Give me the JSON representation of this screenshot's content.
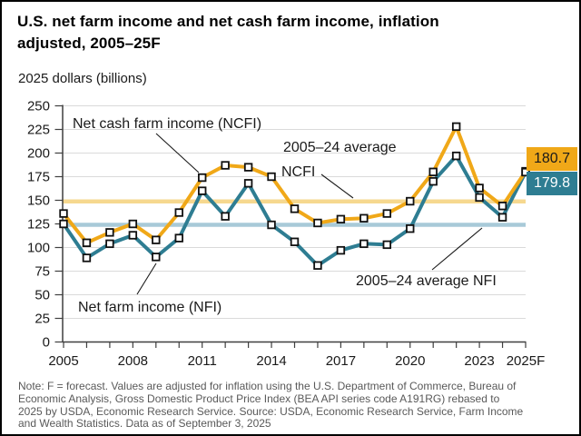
{
  "title_lines": [
    "U.S. net farm income and net cash farm income, inflation",
    "adjusted, 2005–25F"
  ],
  "subtitle": "2025 dollars (billions)",
  "annotations": {
    "ncfi_label": "Net cash farm income (NCFI)",
    "nfi_label": "Net farm income (NFI)",
    "avg_ncfi_line1": "2005–24 average",
    "avg_ncfi_line2": "NCFI",
    "avg_nfi_label": "2005–24 average NFI"
  },
  "note_lines": [
    "Note: F = forecast. Values are adjusted for inflation using the U.S. Department of Commerce, Bureau of",
    "Economic Analysis, Gross Domestic Product Price Index (BEA API series code A191RG) rebased to",
    "2025 by USDA, Economic Research Service. Source: USDA, Economic Research Service, Farm Income",
    "and Wealth Statistics. Data as of September 3, 2025"
  ],
  "chart_data": {
    "type": "line",
    "title": "U.S. net farm income and net cash farm income, inflation adjusted, 2005–25F",
    "xlabel": "",
    "ylabel": "2025 dollars (billions)",
    "ylim": [
      0,
      250
    ],
    "y_step": 25,
    "grid": true,
    "legend_position": "direct-labels",
    "x": [
      "2005",
      "2006",
      "2007",
      "2008",
      "2009",
      "2010",
      "2011",
      "2012",
      "2013",
      "2014",
      "2015",
      "2016",
      "2017",
      "2018",
      "2019",
      "2020",
      "2021",
      "2022",
      "2023",
      "2024",
      "2025F"
    ],
    "x_tick_labels": [
      "2005",
      "2008",
      "2011",
      "2014",
      "2017",
      "2020",
      "2023",
      "2025F"
    ],
    "series": [
      {
        "name": "Net cash farm income (NCFI)",
        "color": "#F0A818",
        "marker": "open-square",
        "values": [
          136,
          105,
          116,
          125,
          108,
          137,
          174,
          187,
          185,
          175,
          141,
          126,
          130,
          131,
          136,
          149,
          180,
          228,
          163,
          144,
          180.7
        ]
      },
      {
        "name": "Net farm income (NFI)",
        "color": "#2E7D92",
        "marker": "open-square",
        "values": [
          125,
          89,
          104,
          113,
          90,
          110,
          160,
          133,
          168,
          124,
          106,
          81,
          97,
          104,
          103,
          120,
          170,
          197,
          153,
          132,
          179.8
        ]
      }
    ],
    "averages": [
      {
        "name": "2005–24 average NCFI",
        "value": 148.8,
        "color": "#F6D88F"
      },
      {
        "name": "2005–24 average NFI",
        "value": 124.0,
        "color": "#A8CAD8"
      }
    ],
    "end_labels": [
      {
        "series": "NCFI",
        "value": "180.7",
        "bg": "#F0A818",
        "fg": "#1a1a1a"
      },
      {
        "series": "NFI",
        "value": "179.8",
        "bg": "#2E7D92",
        "fg": "#ffffff"
      }
    ],
    "colors": {
      "grid": "#DADADA",
      "axis": "#3F3F3F",
      "marker_fill": "#ffffff",
      "marker_stroke": "#111111",
      "annotation_text": "#1a1a1a",
      "note_text": "#595959"
    }
  }
}
